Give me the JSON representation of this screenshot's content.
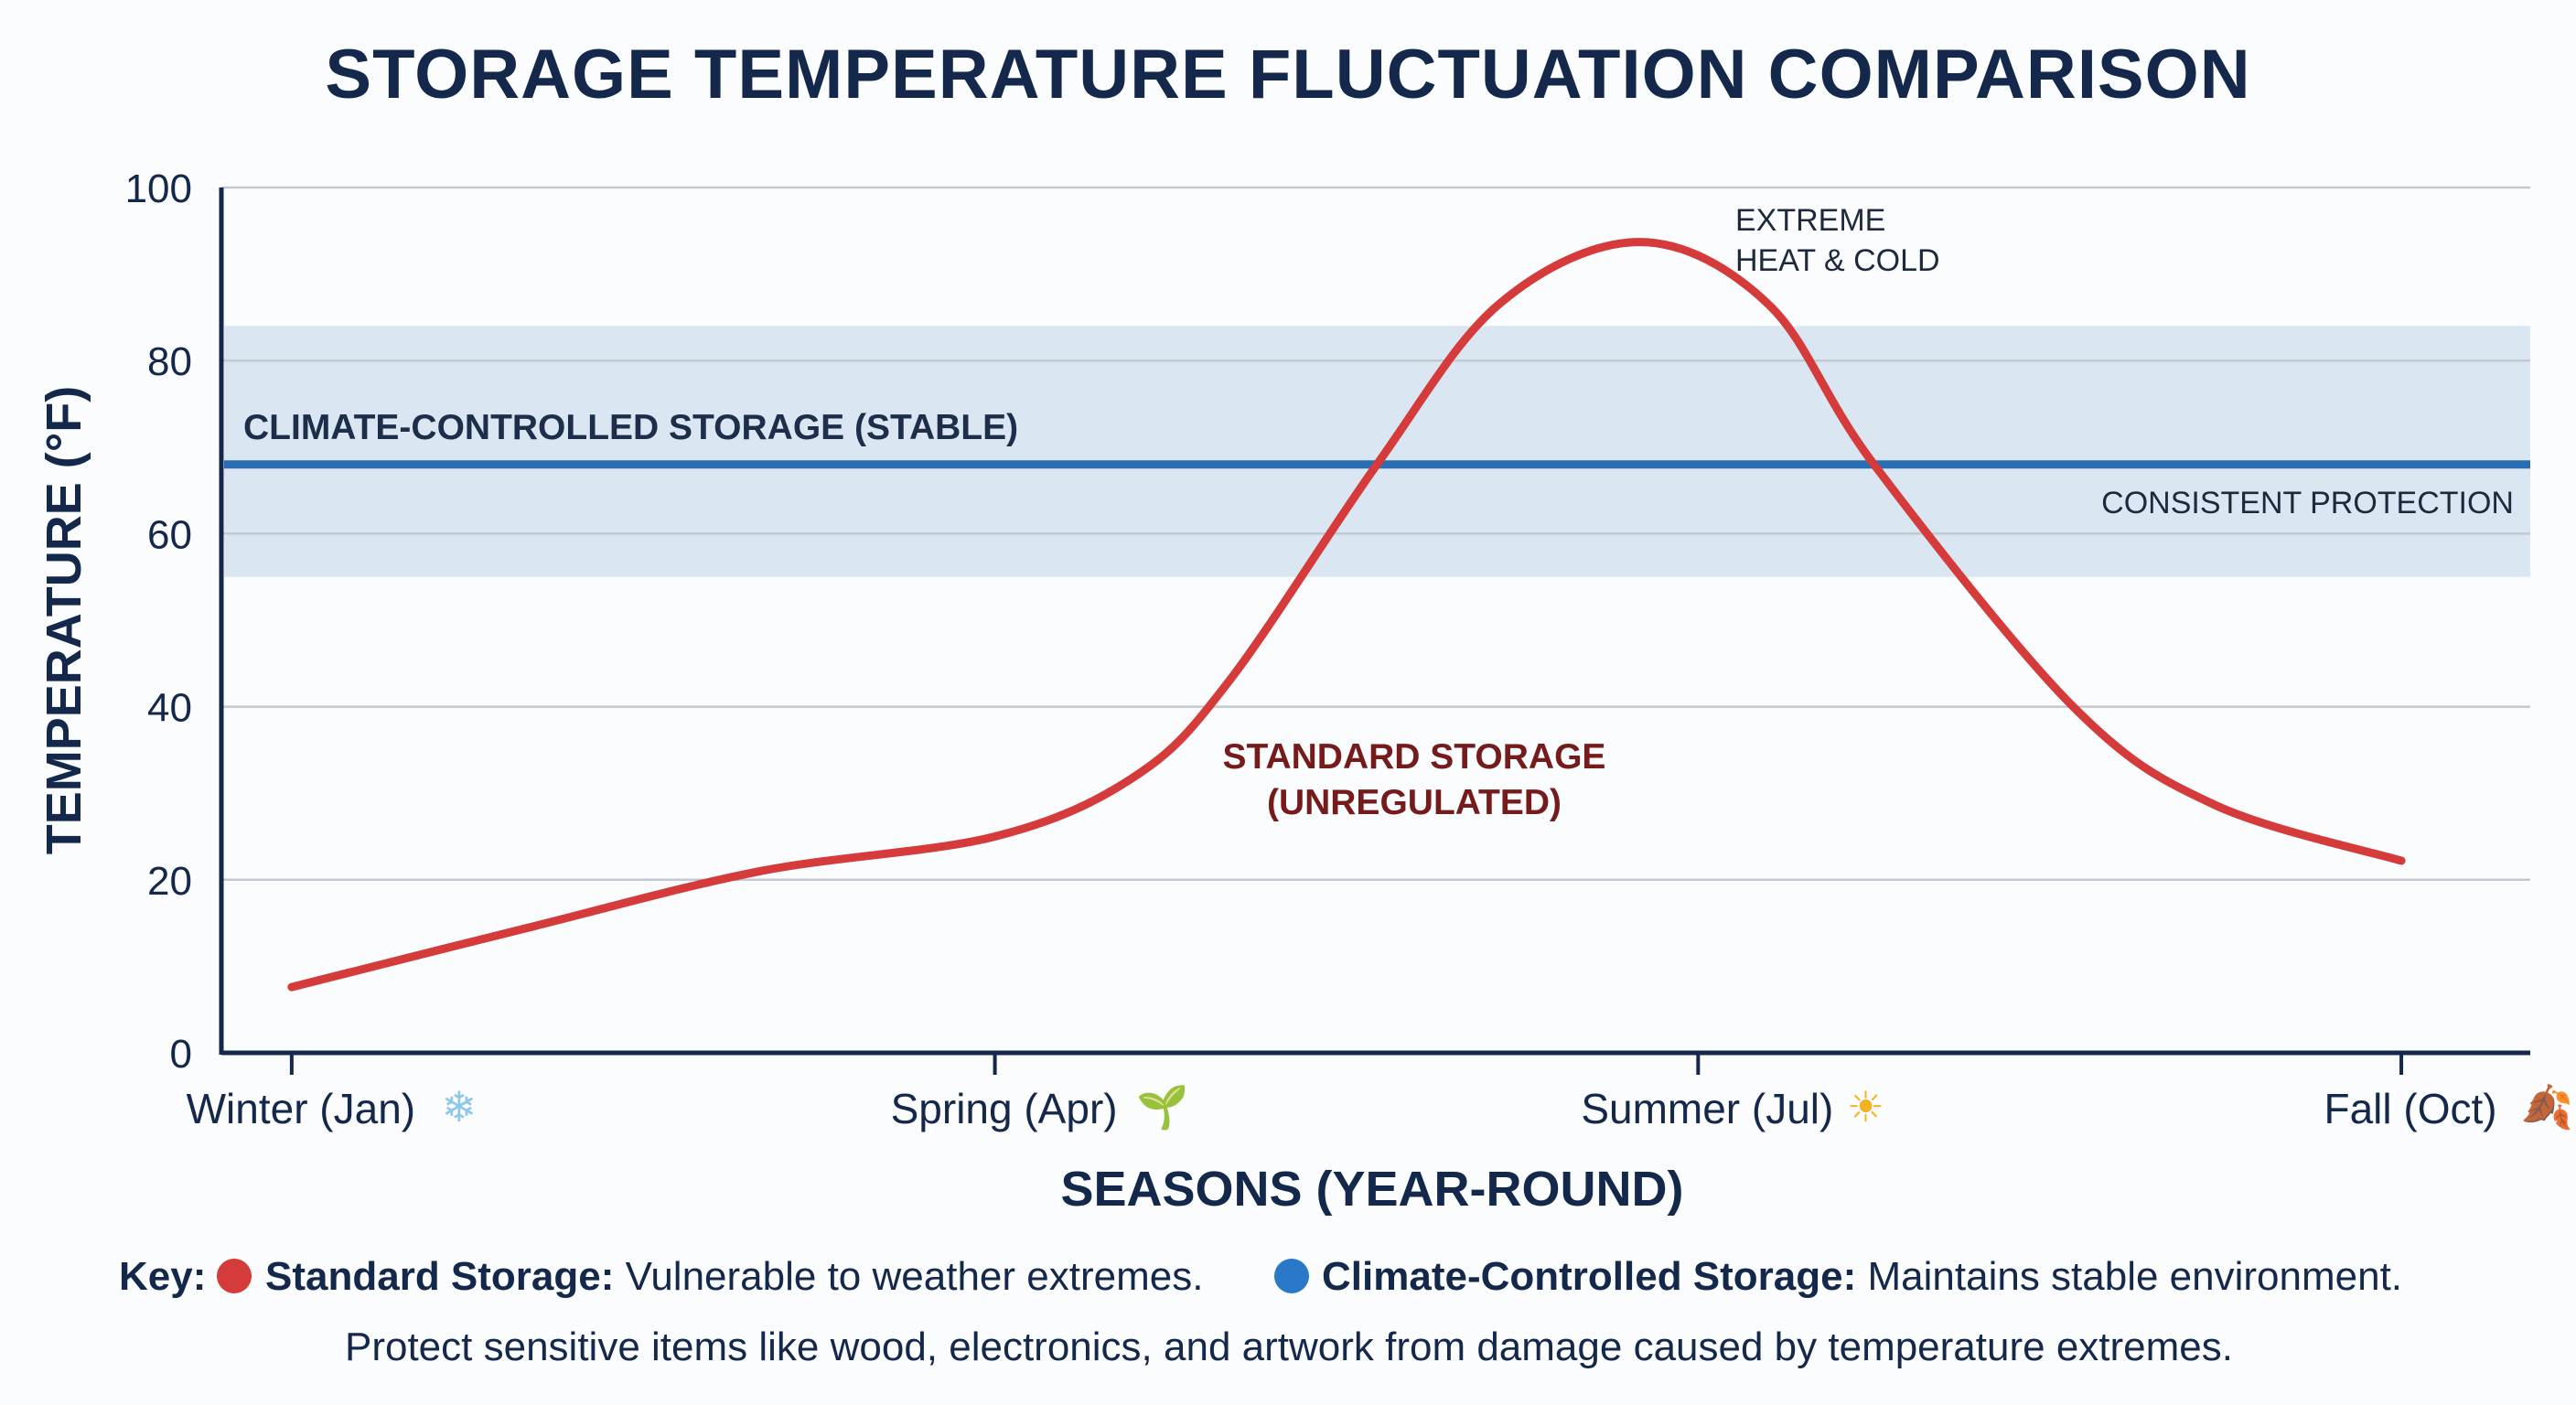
{
  "chart_data": {
    "type": "line",
    "title": "STORAGE TEMPERATURE FLUCTUATION COMPARISON",
    "xlabel": "SEASONS (YEAR-ROUND)",
    "ylabel": "TEMPERATURE (°F)",
    "ylim": [
      0,
      100
    ],
    "yticks": [
      0,
      20,
      40,
      60,
      80,
      100
    ],
    "grid": true,
    "xticks": [
      {
        "x": 1,
        "label": "Winter (Jan)",
        "icon": "snowflake-icon"
      },
      {
        "x": 4,
        "label": "Spring (Apr)",
        "icon": "seedling-icon"
      },
      {
        "x": 7,
        "label": "Summer (Jul)",
        "icon": "sun-icon"
      },
      {
        "x": 10,
        "label": "Fall (Oct)",
        "icon": "fallen-leaf-icon"
      }
    ],
    "xlim": [
      0.7,
      10.55
    ],
    "series": [
      {
        "name": "Standard Storage",
        "color": "#d63b3b",
        "x": [
          1,
          2,
          3,
          4,
          4.6,
          5,
          5.63,
          6.15,
          6.75,
          7.3,
          7.75,
          8.6,
          9.2,
          10
        ],
        "y": [
          7.6,
          14.4,
          21,
          25,
          32,
          43,
          68,
          86.5,
          93.7,
          86.5,
          68,
          40,
          28.7,
          22.2
        ]
      },
      {
        "name": "Climate-Controlled Storage",
        "color": "#2a6db5",
        "value": 68,
        "band": [
          55,
          84
        ],
        "band_color": "#d4e2ee"
      }
    ],
    "annotations": {
      "climate_label": "CLIMATE-CONTROLLED STORAGE (STABLE)",
      "consistent": "CONSISTENT PROTECTION",
      "extreme_1": "EXTREME",
      "extreme_2": "HEAT & COLD",
      "standard_1": "STANDARD STORAGE",
      "standard_2": "(UNREGULATED)"
    },
    "legend": {
      "prefix": "Key:",
      "items": [
        {
          "label": "Standard Storage:",
          "desc": " Vulnerable to weather extremes.",
          "color": "#d63b3b"
        },
        {
          "label": "Climate-Controlled Storage:",
          "desc": " Maintains stable environment.",
          "color": "#2a78c8"
        }
      ],
      "note": "Protect sensitive items like wood, electronics, and artwork from damage caused by temperature extremes.",
      "placement": "bottom"
    }
  }
}
